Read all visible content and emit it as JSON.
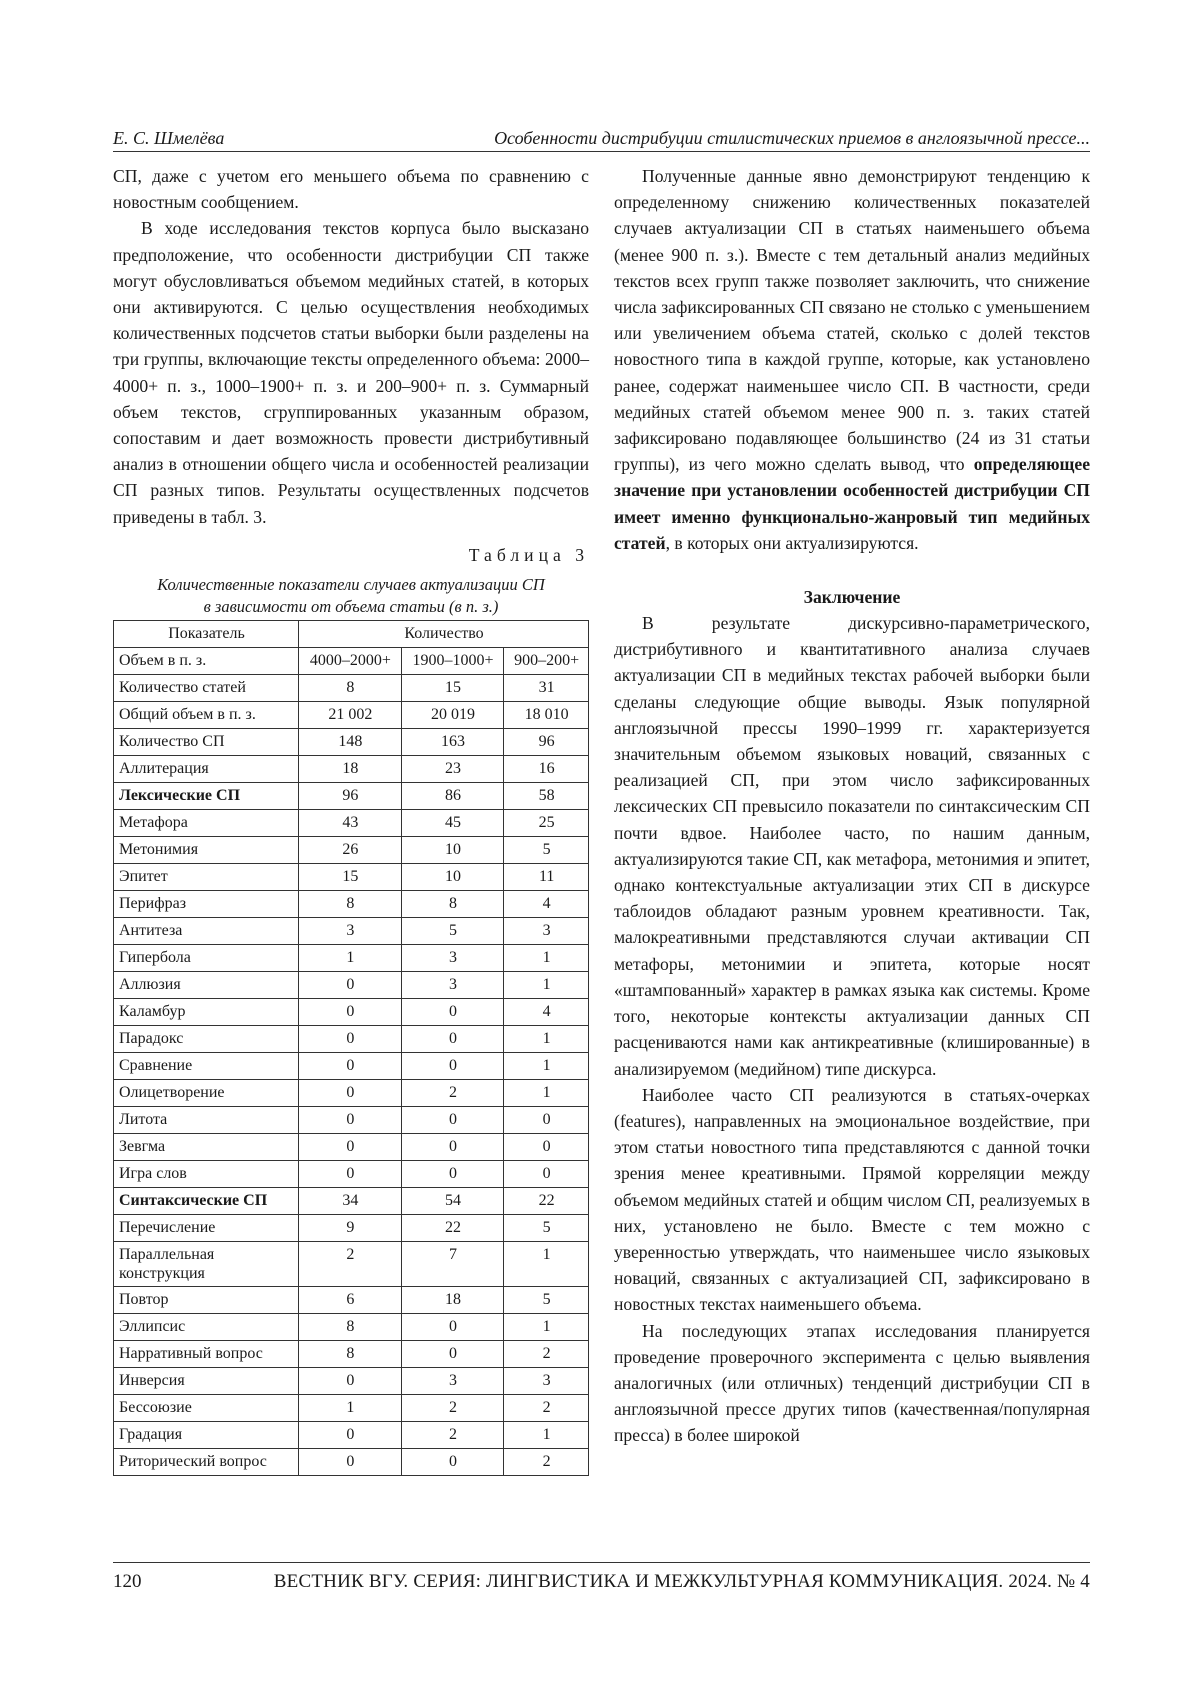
{
  "header": {
    "author": "Е. С. Шмелёва",
    "title": "Особенности дистрибуции стилистических приемов в англоязычной прессе..."
  },
  "left": {
    "p1": "СП, даже с учетом его меньшего объема по сравнению с новостным сообщением.",
    "p2": "В ходе исследования текстов корпуса было высказано предположение, что особенности дистрибуции СП также могут обусловливаться объемом медийных статей, в которых они активируются. С целью осуществления необходимых количественных подсчетов статьи выборки были разделены на три группы, включающие тексты определенного объема: 2000–4000+ п. з., 1000–1900+ п. з. и 200–900+ п. з. Суммарный объем текстов, сгруппированных указанным образом, сопоставим и дает возможность провести дистрибутивный анализ в отношении общего числа и особенностей реализации СП разных типов. Результаты осуществленных подсчетов приведены в табл. 3."
  },
  "table": {
    "label": "Таблица 3",
    "caption1": "Количественные показатели случаев актуализации СП",
    "caption2": "в зависимости от объема статьи (в п. з.)",
    "head": [
      "Показатель",
      "Количество"
    ],
    "rows": [
      [
        "Объем в п. з.",
        "4000–2000+",
        "1900–1000+",
        "900–200+"
      ],
      [
        "Количество статей",
        "8",
        "15",
        "31"
      ],
      [
        "Общий объем в п. з.",
        "21 002",
        "20 019",
        "18 010"
      ],
      [
        "Количество СП",
        "148",
        "163",
        "96"
      ],
      [
        "Аллитерация",
        "18",
        "23",
        "16"
      ],
      [
        "Лексические СП",
        "96",
        "86",
        "58"
      ],
      [
        "Метафора",
        "43",
        "45",
        "25"
      ],
      [
        "Метонимия",
        "26",
        "10",
        "5"
      ],
      [
        "Эпитет",
        "15",
        "10",
        "11"
      ],
      [
        "Перифраз",
        "8",
        "8",
        "4"
      ],
      [
        "Антитеза",
        "3",
        "5",
        "3"
      ],
      [
        "Гипербола",
        "1",
        "3",
        "1"
      ],
      [
        "Аллюзия",
        "0",
        "3",
        "1"
      ],
      [
        "Каламбур",
        "0",
        "0",
        "4"
      ],
      [
        "Парадокс",
        "0",
        "0",
        "1"
      ],
      [
        "Сравнение",
        "0",
        "0",
        "1"
      ],
      [
        "Олицетворение",
        "0",
        "2",
        "1"
      ],
      [
        "Литота",
        "0",
        "0",
        "0"
      ],
      [
        "Зевгма",
        "0",
        "0",
        "0"
      ],
      [
        "Игра слов",
        "0",
        "0",
        "0"
      ],
      [
        "Синтаксические СП",
        "34",
        "54",
        "22"
      ],
      [
        "Перечисление",
        "9",
        "22",
        "5"
      ],
      [
        "Параллельная конструкция",
        "2",
        "7",
        "1"
      ],
      [
        "Повтор",
        "6",
        "18",
        "5"
      ],
      [
        "Эллипсис",
        "8",
        "0",
        "1"
      ],
      [
        "Нарративный вопрос",
        "8",
        "0",
        "2"
      ],
      [
        "Инверсия",
        "0",
        "3",
        "3"
      ],
      [
        "Бессоюзие",
        "1",
        "2",
        "2"
      ],
      [
        "Градация",
        "0",
        "2",
        "1"
      ],
      [
        "Риторический вопрос",
        "0",
        "0",
        "2"
      ]
    ]
  },
  "right": {
    "p1a": "Полученные данные явно демонстрируют тенденцию к определенному снижению количественных показателей случаев актуализации СП в статьях наименьшего объема (менее 900 п. з.). Вместе с тем детальный анализ медийных текстов всех групп также позволяет заключить, что снижение числа зафиксированных СП связано не столько с уменьшением или увеличением объема статей, сколько с долей текстов новостного типа в каждой группе, которые, как установлено ранее, содержат наименьшее число СП. В частности, среди медийных статей объемом менее 900 п. з. таких статей зафиксировано подавляющее большинство (24 из 31 статьи группы), из чего можно сделать вывод, что ",
    "p1b": "определяющее значение при установлении особенностей дистрибуции СП имеет именно функционально-жанровый тип медийных статей",
    "p1c": ", в которых они актуализируются.",
    "heading": "Заключение",
    "p2": "В результате дискурсивно-параметрического, дистрибутивного и квантитативного анализа случаев актуализации СП в медийных текстах рабочей выборки были сделаны следующие общие выводы. Язык популярной англоязычной прессы 1990–1999 гг. характеризуется значительным объемом языковых новаций, связанных с реализацией СП, при этом число зафиксированных лексических СП превысило показатели по синтаксическим СП почти вдвое. Наиболее часто, по нашим данным, актуализируются такие СП, как метафора, метонимия и эпитет, однако контекстуальные актуализации этих СП в дискурсе таблоидов обладают разным уровнем креативности. Так, малокреативными представляются случаи активации СП метафоры, метонимии и эпитета, которые носят «штампованный» характер в рамках языка как системы. Кроме того, некоторые контексты актуализации данных СП расцениваются нами как антикреативные (клишированные) в анализируемом (медийном) типе дискурса.",
    "p3": "Наиболее часто СП реализуются в статьях-очерках (features), направленных на эмоциональное воздействие, при этом статьи новостного типа представляются с данной точки зрения менее креативными. Прямой корреляции между объемом медийных статей и общим числом СП, реализуемых в них, установлено не было. Вместе с тем можно с уверенностью утверждать, что наименьшее число языковых новаций, связанных с актуализацией СП, зафиксировано в новостных текстах наименьшего объема.",
    "p4": "На последующих этапах исследования планируется проведение проверочного эксперимента с целью выявления аналогичных (или отличных) тенденций дистрибуции СП в англоязычной прессе других типов (качественная/популярная пресса) в более широкой"
  },
  "footer": {
    "page": "120",
    "journal": "ВЕСТНИК ВГУ. СЕРИЯ: ЛИНГВИСТИКА И МЕЖКУЛЬТУРНАЯ КОММУНИКАЦИЯ. 2024. № 4"
  }
}
